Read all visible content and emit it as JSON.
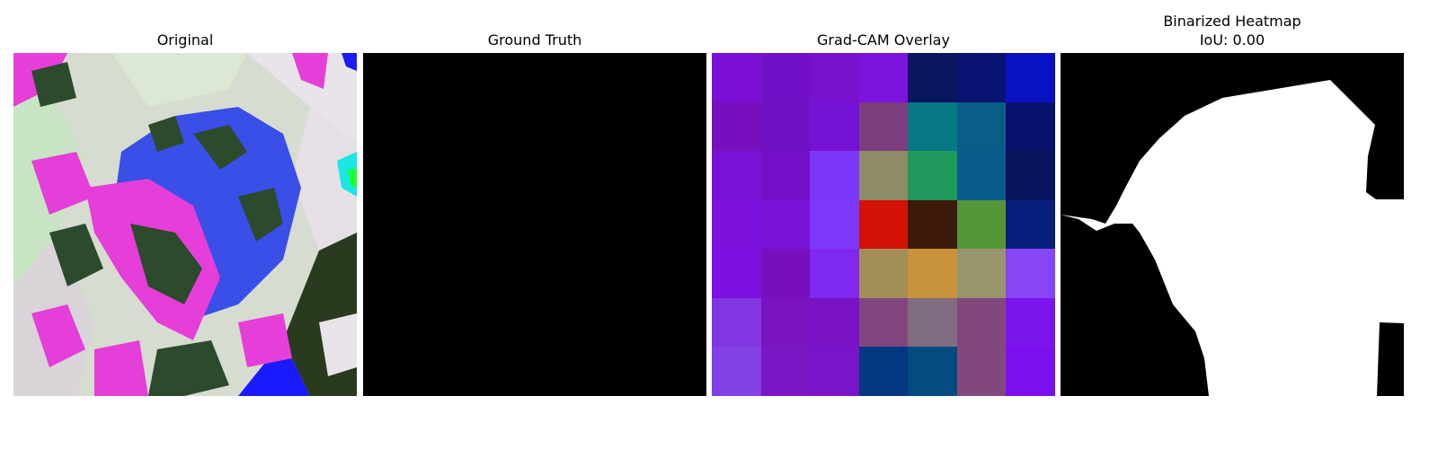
{
  "panels": [
    {
      "title": "Original"
    },
    {
      "title": "Ground Truth"
    },
    {
      "title": "Grad-CAM Overlay"
    },
    {
      "title": "Binarized Heatmap",
      "subtitle": "IoU: 0.00"
    }
  ],
  "gradcam_grid": [
    [
      "#7c0fd6",
      "#7210c8",
      "#7612cc",
      "#7c13dc",
      "#0b1560",
      "#081270",
      "#0812c2"
    ],
    [
      "#7610be",
      "#7210c4",
      "#7612d6",
      "#7c3c7e",
      "#067884",
      "#095e88",
      "#08126c"
    ],
    [
      "#7812d6",
      "#7410c8",
      "#7c36f8",
      "#8e8c68",
      "#20985c",
      "#085c8c",
      "#08145e"
    ],
    [
      "#7c10dc",
      "#7a12d8",
      "#7c38f8",
      "#d41206",
      "#3c1a0a",
      "#56963a",
      "#081e7c"
    ],
    [
      "#7c10e0",
      "#7610bc",
      "#7e28f0",
      "#a48e58",
      "#c8923a",
      "#98946c",
      "#8646f6"
    ],
    [
      "#8036e0",
      "#7a14c0",
      "#7812c4",
      "#82467e",
      "#806c80",
      "#82487e",
      "#7c14ec"
    ],
    [
      "#8240e6",
      "#7a16c4",
      "#7a14c8",
      "#033882",
      "#034c82",
      "#82487e",
      "#7c10ec"
    ]
  ]
}
